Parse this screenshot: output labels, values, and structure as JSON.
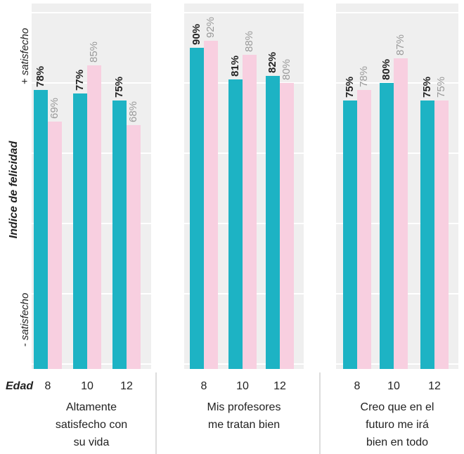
{
  "chart_data": {
    "type": "grouped-bar",
    "y_label": "Indice de felicidad",
    "y_top_label": "+ satisfecho",
    "y_bottom_label": "- satisfecho",
    "x_label": "Edad",
    "ylim": [
      0,
      100
    ],
    "yticks": [
      0,
      20,
      40,
      60,
      80,
      100
    ],
    "grid": true,
    "panels": [
      {
        "title": [
          "Altamente",
          "satisfecho con",
          "su vida"
        ],
        "categories": [
          "8",
          "10",
          "12"
        ],
        "series": [
          {
            "color": "#1db3c4",
            "values": [
              78,
              77,
              75
            ],
            "value_labels": [
              "78%",
              "77%",
              "75%"
            ]
          },
          {
            "color": "#f8cfe0",
            "values": [
              69,
              85,
              68
            ],
            "value_labels": [
              "69%",
              "85%",
              "68%"
            ]
          }
        ]
      },
      {
        "title": [
          "Mis profesores",
          "me tratan bien"
        ],
        "categories": [
          "8",
          "10",
          "12"
        ],
        "series": [
          {
            "color": "#1db3c4",
            "values": [
              90,
              81,
              82
            ],
            "value_labels": [
              "90%",
              "81%",
              "82%"
            ]
          },
          {
            "color": "#f8cfe0",
            "values": [
              92,
              88,
              80
            ],
            "value_labels": [
              "92%",
              "88%",
              "80%"
            ]
          }
        ]
      },
      {
        "title": [
          "Creo que en el",
          "futuro me irá",
          "bien en todo"
        ],
        "categories": [
          "8",
          "10",
          "12"
        ],
        "series": [
          {
            "color": "#1db3c4",
            "values": [
              75,
              80,
              75
            ],
            "value_labels": [
              "75%",
              "80%",
              "75%"
            ]
          },
          {
            "color": "#f8cfe0",
            "values": [
              78,
              87,
              75
            ],
            "value_labels": [
              "78%",
              "87%",
              "75%"
            ]
          }
        ]
      }
    ]
  }
}
